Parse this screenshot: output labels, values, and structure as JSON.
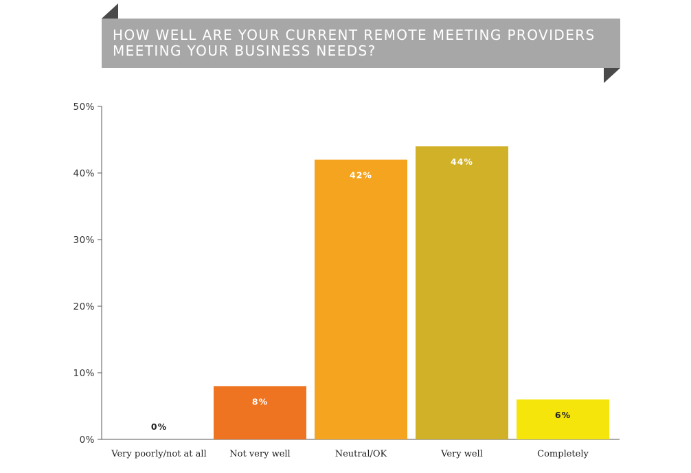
{
  "colors": {
    "banner": "#a7a7a7",
    "corner": "#4a4a4a",
    "axis": "#555555"
  },
  "chart_data": {
    "type": "bar",
    "title": "HOW WELL ARE YOUR CURRENT REMOTE MEETING PROVIDERS MEETING YOUR BUSINESS NEEDS?",
    "categories": [
      "Very poorly/not at all",
      "Not very well",
      "Neutral/OK",
      "Very well",
      "Completely"
    ],
    "values": [
      0,
      8,
      42,
      44,
      6
    ],
    "value_labels": [
      "0%",
      "8%",
      "42%",
      "44%",
      "6%"
    ],
    "bar_colors": [
      "#ffffff",
      "#ef7422",
      "#f5a41f",
      "#d1b127",
      "#f5e50a"
    ],
    "value_label_colors": [
      "#222222",
      "#ffffff",
      "#ffffff",
      "#ffffff",
      "#222222"
    ],
    "yticks": [
      0,
      10,
      20,
      30,
      40,
      50
    ],
    "ytick_labels": [
      "0%",
      "10%",
      "20%",
      "30%",
      "40%",
      "50%"
    ],
    "ylim": [
      0,
      50
    ],
    "xlabel": "",
    "ylabel": "",
    "grid": false,
    "legend": "none"
  }
}
